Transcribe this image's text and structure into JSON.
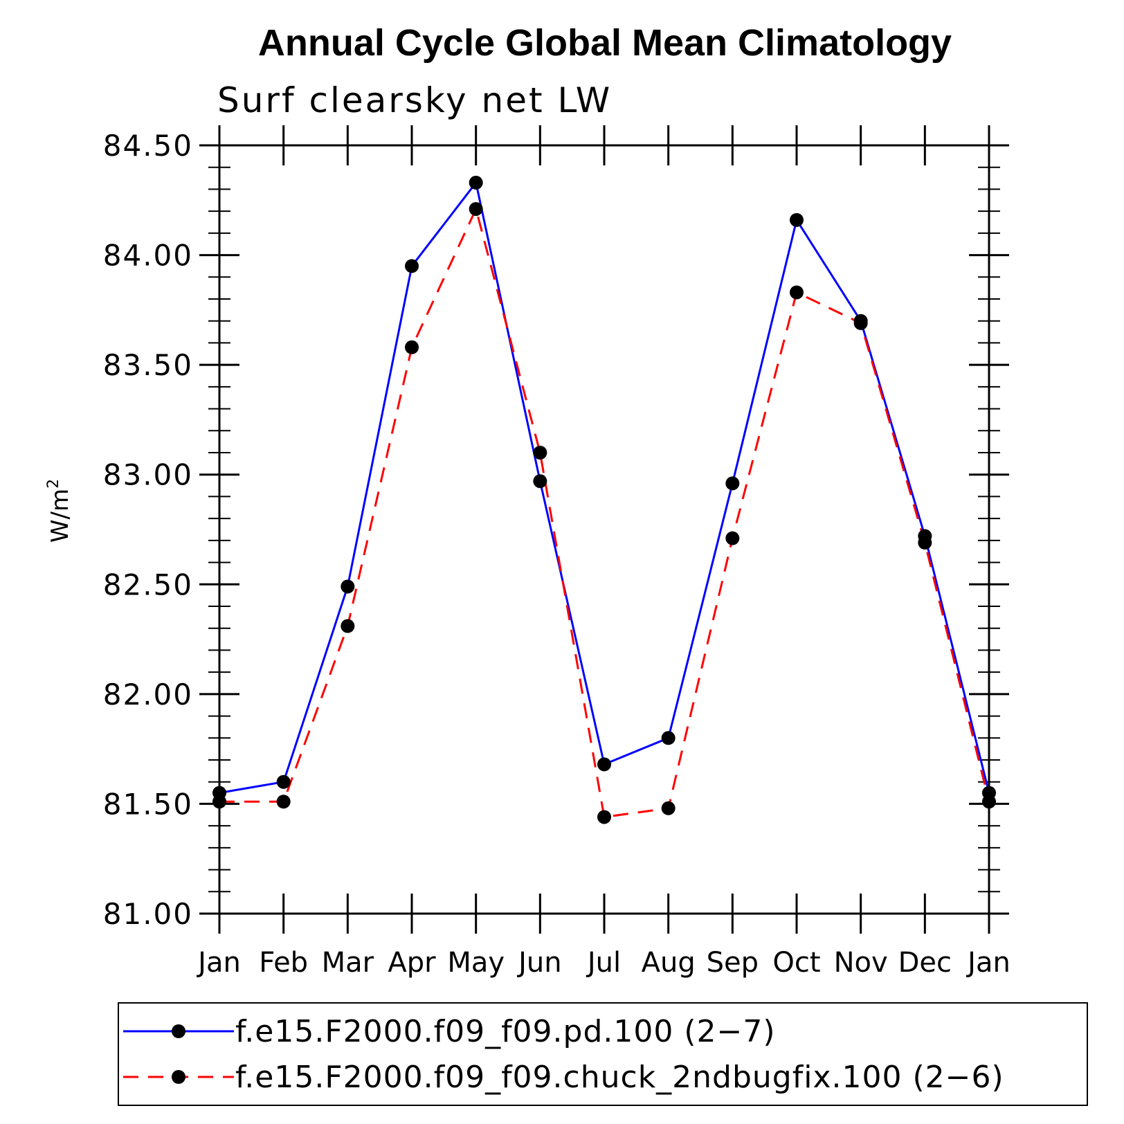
{
  "chart_data": {
    "type": "line",
    "title": "Annual Cycle Global Mean Climatology",
    "subtitle": "Surf clearsky net LW",
    "xlabel": "",
    "ylabel": "W/m",
    "ylabel_superscript": "2",
    "categories": [
      "Jan",
      "Feb",
      "Mar",
      "Apr",
      "May",
      "Jun",
      "Jul",
      "Aug",
      "Sep",
      "Oct",
      "Nov",
      "Dec",
      "Jan"
    ],
    "ylim": [
      81.0,
      84.5
    ],
    "yticks": [
      "81.00",
      "81.50",
      "82.00",
      "82.50",
      "83.00",
      "83.50",
      "84.00",
      "84.50"
    ],
    "grid": false,
    "legend_position": "bottom",
    "series": [
      {
        "name": "f.e15.F2000.f09_f09.pd.100 (2−7)",
        "color": "#0000ff",
        "dash": "solid",
        "marker": "circle",
        "values": [
          81.55,
          81.6,
          82.49,
          83.95,
          84.33,
          82.97,
          81.68,
          81.8,
          82.96,
          84.16,
          83.7,
          82.72,
          81.55
        ]
      },
      {
        "name": "f.e15.F2000.f09_f09.chuck_2ndbugfix.100 (2−6)",
        "color": "#ff0000",
        "dash": "dashed",
        "marker": "circle",
        "values": [
          81.51,
          81.51,
          82.31,
          83.58,
          84.21,
          83.1,
          81.44,
          81.48,
          82.71,
          83.83,
          83.69,
          82.69,
          81.51
        ]
      }
    ]
  }
}
